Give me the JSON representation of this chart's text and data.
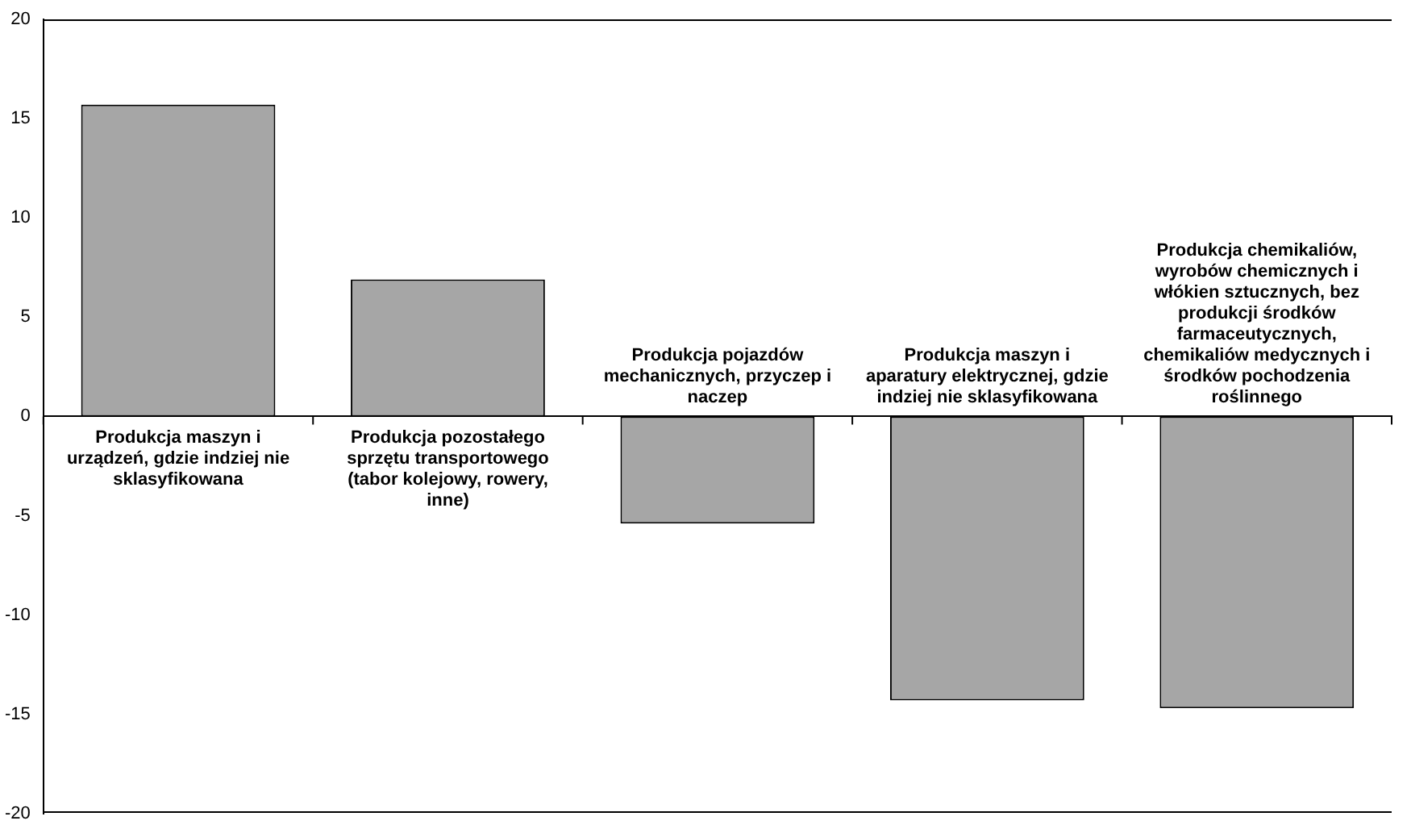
{
  "chart_data": {
    "type": "bar",
    "categories": [
      "Produkcja maszyn i urządzeń, gdzie indziej nie sklasyfikowana",
      "Produkcja pozostałego sprzętu transportowego (tabor kolejowy, rowery, inne)",
      "Produkcja pojazdów mechanicznych, przyczep i naczep",
      "Produkcja maszyn i aparatury elektrycznej, gdzie indziej nie sklasyfikowana",
      "Produkcja chemikaliów, wyrobów chemicznych i włókien sztucznych, bez produkcji środków farmaceutycznych, chemikaliów medycznych i środków pochodzenia roślinnego"
    ],
    "values": [
      15.7,
      6.9,
      -5.4,
      -14.3,
      -14.7
    ],
    "color": "#a6a6a6",
    "ylim": [
      -20,
      20
    ],
    "yticks": [
      -20,
      -15,
      -10,
      -5,
      0,
      5,
      10,
      15,
      20
    ],
    "grid": false,
    "legend": false
  }
}
